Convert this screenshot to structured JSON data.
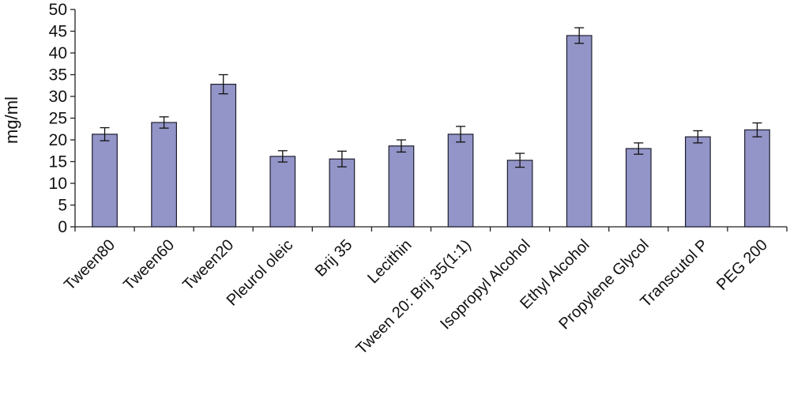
{
  "chart_data": {
    "type": "bar",
    "title": "",
    "xlabel": "",
    "ylabel": "mg/ml",
    "ylim": [
      0,
      50
    ],
    "yticks": [
      0,
      5,
      10,
      15,
      20,
      25,
      30,
      35,
      40,
      45,
      50
    ],
    "grid": false,
    "legend": "none",
    "bar_color": "#9395C8",
    "bar_edge_color": "#1E1E2E",
    "axis_color": "#222222",
    "categories": [
      "Tween80",
      "Tween60",
      "Tween20",
      "Pleurol oleic",
      "Brij 35",
      "Lecithin",
      "Tween 20: Brij 35(1:1)",
      "Isopropyl Alcohol",
      "Ethyl Alcohol",
      "Propylene Glycol",
      "Transcutol P",
      "PEG 200"
    ],
    "values": [
      21.3,
      24.0,
      32.8,
      16.2,
      15.6,
      18.6,
      21.3,
      15.3,
      44.0,
      18.0,
      20.7,
      22.3
    ],
    "errors": [
      1.5,
      1.3,
      2.2,
      1.3,
      1.8,
      1.4,
      1.8,
      1.6,
      1.8,
      1.3,
      1.4,
      1.6
    ]
  }
}
